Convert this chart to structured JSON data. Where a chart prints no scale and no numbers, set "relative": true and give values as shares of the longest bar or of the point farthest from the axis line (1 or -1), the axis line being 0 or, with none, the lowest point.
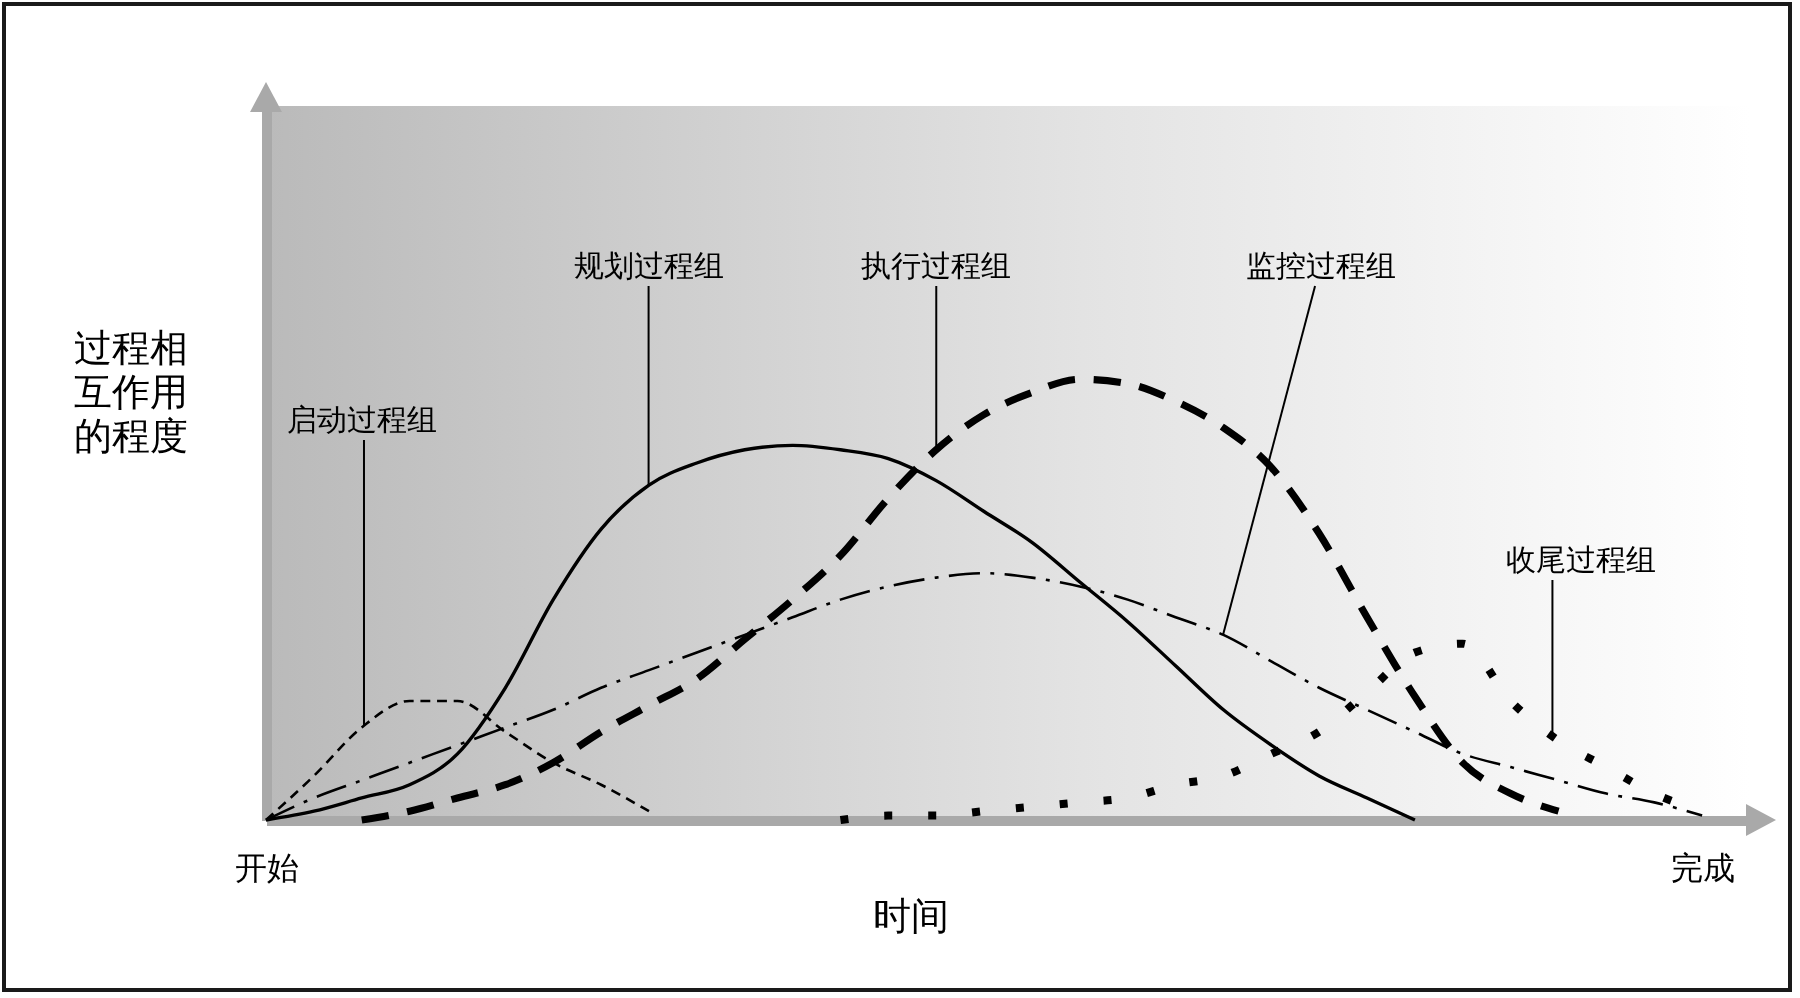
{
  "chart_data": {
    "type": "line",
    "xlabel": "时间",
    "ylabel": "过程相互作用的程度",
    "relative": true,
    "tick_labels": "x",
    "grid": false,
    "categories": [
      "开始",
      null,
      null,
      null,
      null,
      null,
      null,
      null,
      null,
      null,
      null,
      null,
      null,
      null,
      null,
      null,
      null,
      null,
      null,
      null,
      null,
      null,
      null,
      null,
      null,
      null,
      null,
      null,
      null,
      null,
      "完成",
      null
    ],
    "series": [
      {
        "name": "启动过程组",
        "color": "#000000",
        "line_style": "dashed",
        "values": [
          0,
          0.1,
          0.21,
          0.27,
          0.27,
          0.2,
          0.13,
          0.08,
          0.02,
          null,
          null,
          null,
          null,
          null,
          null,
          null,
          null,
          null,
          null,
          null,
          null,
          null,
          null,
          null,
          null,
          null,
          null,
          null,
          null,
          null,
          null,
          null
        ]
      },
      {
        "name": "规划过程组",
        "color": "#000000",
        "line_style": "solid",
        "values": [
          0,
          0.02,
          0.05,
          0.08,
          0.15,
          0.3,
          0.5,
          0.66,
          0.76,
          0.81,
          0.84,
          0.85,
          0.84,
          0.82,
          0.77,
          0.7,
          0.63,
          0.54,
          0.45,
          0.35,
          0.25,
          0.17,
          0.1,
          0.05,
          0,
          null,
          null,
          null,
          null,
          null,
          null,
          null
        ]
      },
      {
        "name": "执行过程组",
        "color": "#000000",
        "line_style": "dashed",
        "values": [
          null,
          null,
          0.0,
          0.02,
          0.05,
          0.08,
          0.13,
          0.2,
          0.26,
          0.32,
          0.41,
          0.5,
          0.6,
          0.73,
          0.84,
          0.92,
          0.97,
          1.0,
          0.99,
          0.95,
          0.89,
          0.8,
          0.65,
          0.46,
          0.28,
          0.13,
          0.06,
          0.02,
          null,
          null,
          null,
          null
        ]
      },
      {
        "name": "监控过程组",
        "color": "#000000",
        "line_style": "dashdot",
        "values": [
          0,
          0.05,
          0.09,
          0.13,
          0.17,
          0.21,
          0.25,
          0.3,
          0.34,
          0.38,
          0.42,
          0.46,
          0.5,
          0.53,
          0.55,
          0.56,
          0.55,
          0.53,
          0.5,
          0.46,
          0.42,
          0.36,
          0.3,
          0.25,
          0.2,
          0.15,
          0.12,
          0.09,
          0.06,
          0.04,
          0.01,
          null
        ]
      },
      {
        "name": "收尾过程组",
        "color": "#000000",
        "line_style": "dotted",
        "values": [
          null,
          null,
          null,
          null,
          null,
          null,
          null,
          null,
          null,
          null,
          null,
          null,
          0.0,
          0.01,
          0.01,
          0.02,
          0.03,
          0.04,
          0.05,
          0.08,
          0.1,
          0.15,
          0.2,
          0.29,
          0.38,
          0.4,
          0.27,
          0.18,
          0.12,
          0.06,
          0.02,
          null
        ]
      }
    ]
  }
}
